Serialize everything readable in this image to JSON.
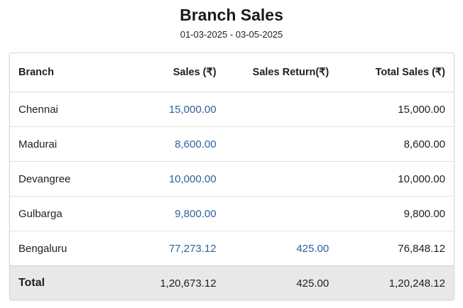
{
  "report": {
    "title": "Branch Sales",
    "date_range": "01-03-2025 - 03-05-2025"
  },
  "table": {
    "headers": [
      "Branch",
      "Sales (₹)",
      "Sales Return(₹)",
      "Total Sales (₹)"
    ],
    "rows": [
      {
        "branch": "Chennai",
        "sales": "15,000.00",
        "sales_return": "",
        "total_sales": "15,000.00"
      },
      {
        "branch": "Madurai",
        "sales": "8,600.00",
        "sales_return": "",
        "total_sales": "8,600.00"
      },
      {
        "branch": "Devangree",
        "sales": "10,000.00",
        "sales_return": "",
        "total_sales": "10,000.00"
      },
      {
        "branch": "Gulbarga",
        "sales": "9,800.00",
        "sales_return": "",
        "total_sales": "9,800.00"
      },
      {
        "branch": "Bengaluru",
        "sales": "77,273.12",
        "sales_return": "425.00",
        "total_sales": "76,848.12"
      }
    ],
    "footer": {
      "label": "Total",
      "sales": "1,20,673.12",
      "sales_return": "425.00",
      "total_sales": "1,20,248.12"
    }
  },
  "colors": {
    "link": "#2f5f9e",
    "footer_bg": "#e8e8e8"
  }
}
